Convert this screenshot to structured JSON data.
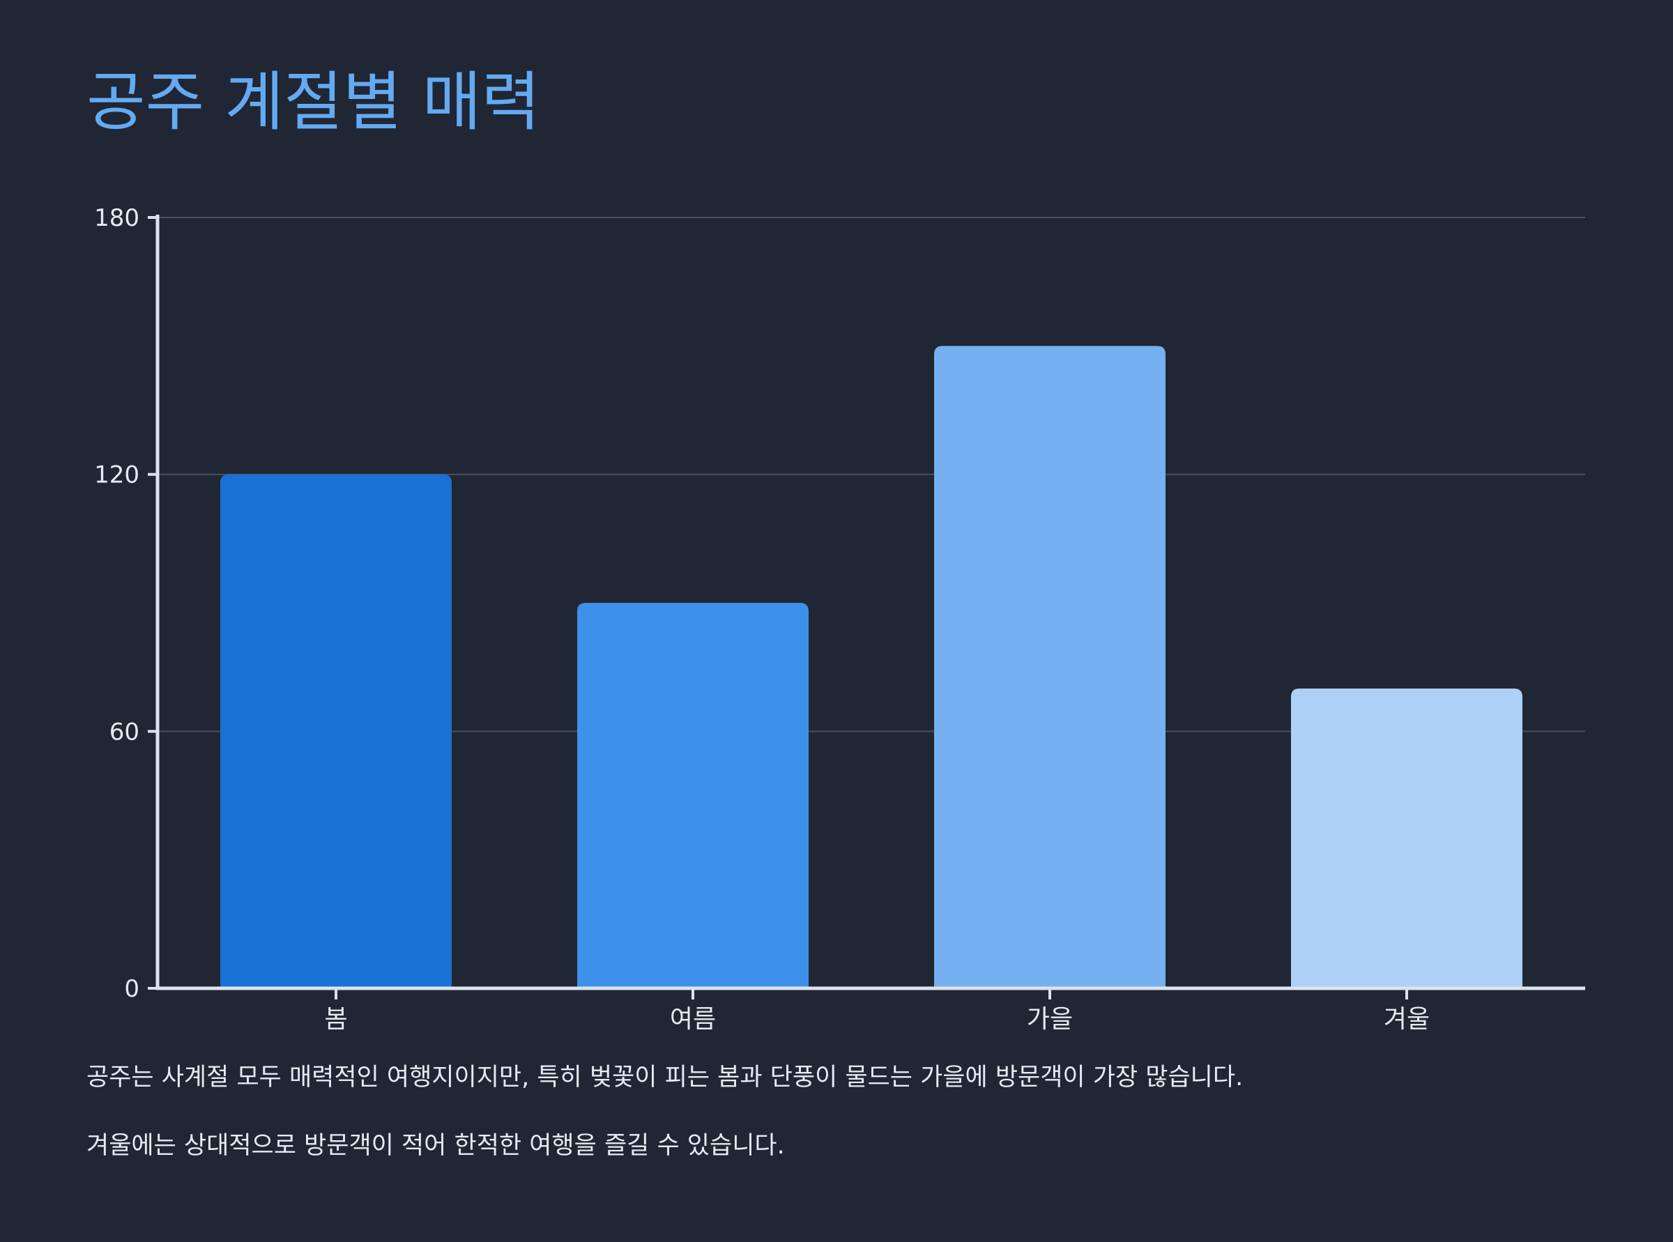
{
  "page": {
    "title": "공주 계절별 매력",
    "notes": [
      "공주는 사계절 모두 매력적인 여행지이지만, 특히 벚꽃이 피는 봄과 단풍이 물드는 가을에 방문객이 가장 많습니다.",
      "겨울에는 상대적으로 방문객이 적어 한적한 여행을 즐길 수 있습니다."
    ]
  },
  "chart_data": {
    "type": "bar",
    "title": "공주 계절별 매력",
    "xlabel": "",
    "ylabel": "",
    "categories": [
      "봄",
      "여름",
      "가을",
      "겨울"
    ],
    "values": [
      120,
      90,
      150,
      70
    ],
    "bar_colors": [
      "#1a71d4",
      "#3d91ea",
      "#75b0f0",
      "#add0f7"
    ],
    "ylim": [
      0,
      180
    ],
    "yticks": [
      0,
      60,
      120,
      180
    ],
    "grid": true,
    "legend": "none"
  },
  "colors": {
    "background": "#202633",
    "title": "#64aaf2",
    "text": "#e6ebf2",
    "axis": "#dbe3ee",
    "grid": "#4a5060"
  }
}
